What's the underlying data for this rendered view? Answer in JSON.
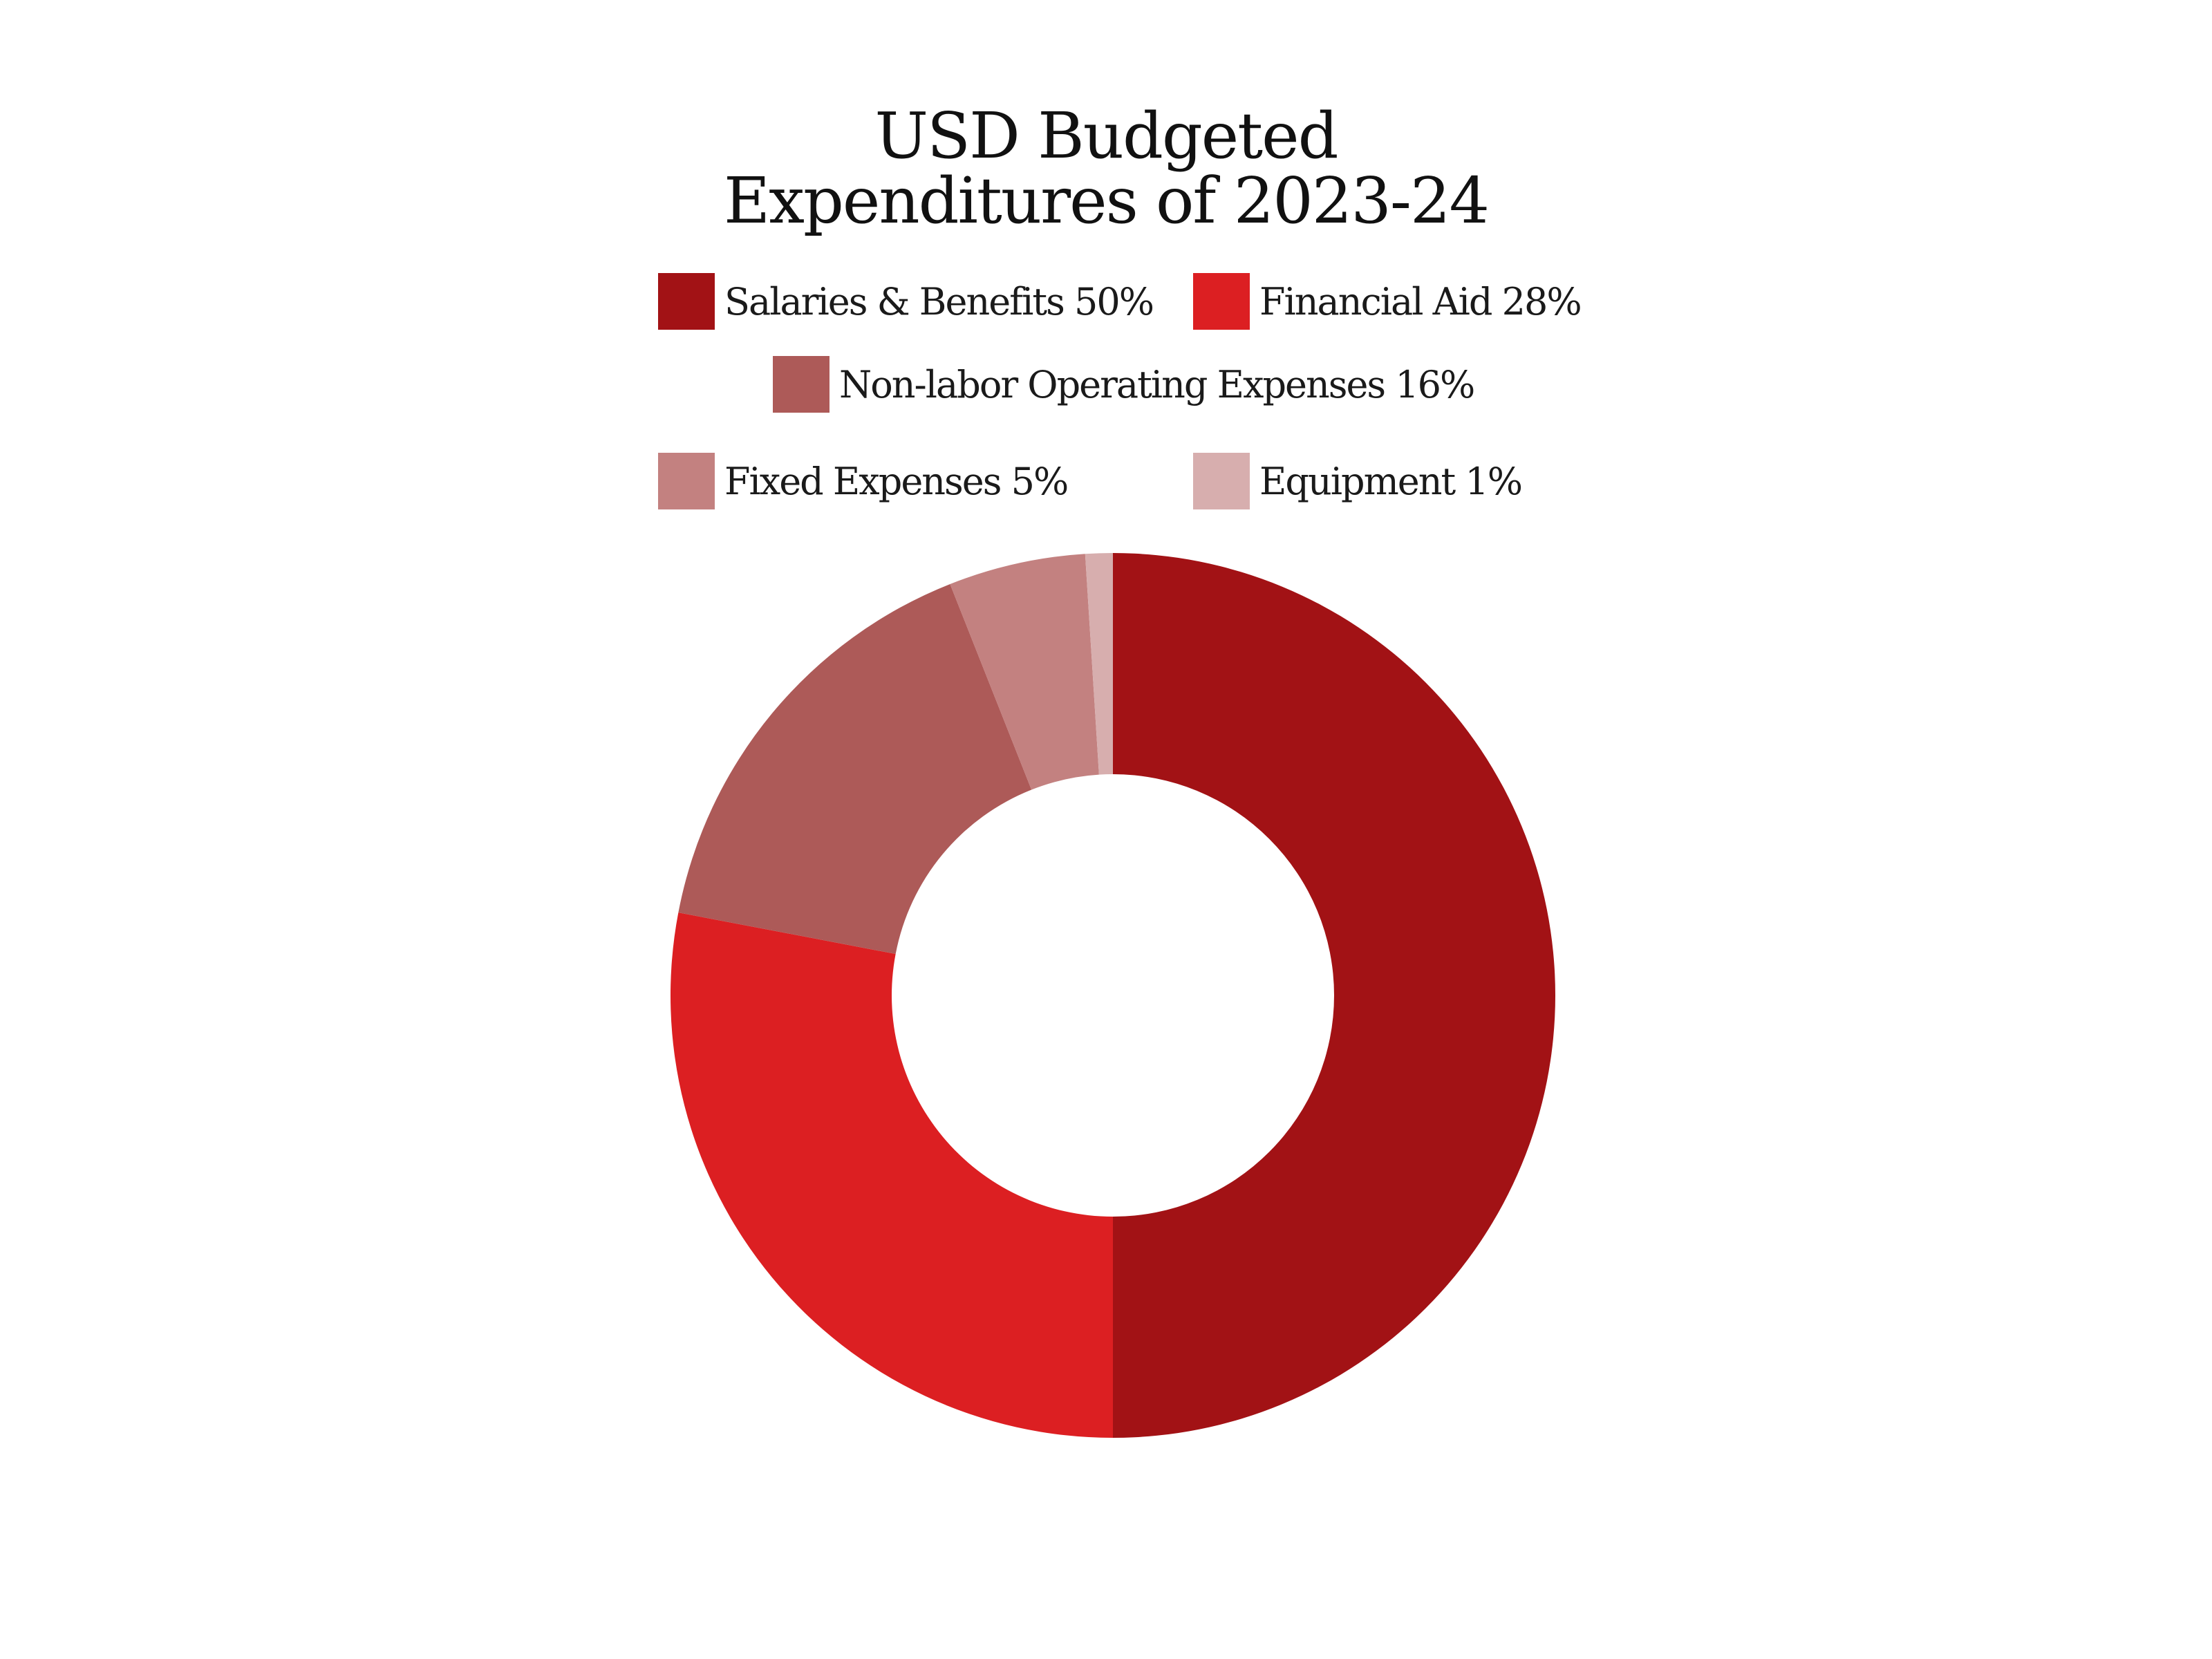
{
  "chart_data": {
    "type": "pie",
    "title_lines": [
      "USD Budgeted",
      "Expenditures of 2023-24"
    ],
    "slices": [
      {
        "label": "Salaries & Benefits 50%",
        "value": 50,
        "color": "#a21215"
      },
      {
        "label": "Financial Aid 28%",
        "value": 28,
        "color": "#dc1f22"
      },
      {
        "label": "Non-labor Operating Expenses 16%",
        "value": 16,
        "color": "#ad5a58"
      },
      {
        "label": "Fixed Expenses 5%",
        "value": 5,
        "color": "#c38180"
      },
      {
        "label": "Equipment 1%",
        "value": 1,
        "color": "#d7aeae"
      }
    ],
    "legend": "top",
    "donut": true
  }
}
